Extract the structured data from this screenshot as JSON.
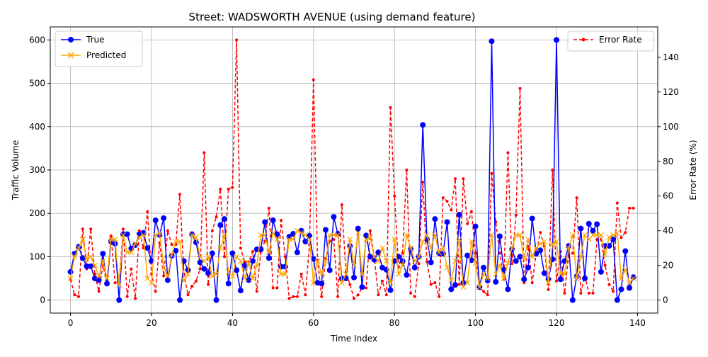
{
  "chart_data": {
    "type": "line",
    "title": "Street: WADSWORTH AVENUE (using demand feature)",
    "xlabel": "Time Index",
    "ylabel_left": "Traffic Volume",
    "ylabel_right": "Error Rate (%)",
    "xlim": [
      -5,
      145
    ],
    "ylim_left": [
      -30,
      630
    ],
    "ylim_right": [
      -7.5,
      157.5
    ],
    "x_ticks": [
      0,
      20,
      40,
      60,
      80,
      100,
      120,
      140
    ],
    "y_ticks_left": [
      0,
      100,
      200,
      300,
      400,
      500,
      600
    ],
    "y_ticks_right": [
      0,
      20,
      40,
      60,
      80,
      100,
      120,
      140
    ],
    "grid": true,
    "legend_left_position": "upper-left",
    "legend_right_position": "upper-right",
    "series": [
      {
        "name": "True",
        "axis": "left",
        "color": "#0000ff",
        "marker": "circle",
        "values": [
          65,
          107,
          123,
          97,
          78,
          78,
          50,
          46,
          107,
          38,
          135,
          130,
          0,
          152,
          152,
          119,
          127,
          152,
          155,
          120,
          90,
          184,
          150,
          189,
          46,
          102,
          114,
          0,
          90,
          69,
          152,
          133,
          87,
          72,
          62,
          108,
          0,
          173,
          187,
          38,
          108,
          69,
          22,
          80,
          46,
          90,
          117,
          117,
          180,
          97,
          184,
          152,
          77,
          77,
          146,
          153,
          110,
          160,
          135,
          148,
          95,
          40,
          38,
          162,
          69,
          192,
          153,
          50,
          50,
          125,
          52,
          165,
          30,
          149,
          100,
          93,
          110,
          75,
          70,
          23,
          90,
          100,
          90,
          58,
          117,
          75,
          100,
          404,
          140,
          87,
          187,
          108,
          107,
          180,
          25,
          35,
          197,
          40,
          103,
          92,
          170,
          30,
          75,
          45,
          597,
          42,
          147,
          70,
          25,
          117,
          90,
          100,
          48,
          75,
          188,
          107,
          115,
          62,
          48,
          94,
          600,
          48,
          90,
          125,
          0,
          55,
          165,
          50,
          176,
          160,
          175,
          65,
          125,
          125,
          140,
          0,
          25,
          113,
          28,
          53
        ]
      },
      {
        "name": "Predicted",
        "axis": "left",
        "color": "#ffa500",
        "marker": "x",
        "values": [
          50,
          100,
          120,
          140,
          95,
          100,
          80,
          55,
          90,
          50,
          140,
          140,
          35,
          150,
          110,
          110,
          130,
          145,
          150,
          50,
          40,
          150,
          155,
          75,
          55,
          105,
          135,
          135,
          45,
          60,
          150,
          145,
          100,
          90,
          100,
          55,
          60,
          120,
          150,
          65,
          55,
          100,
          90,
          50,
          85,
          50,
          80,
          150,
          150,
          110,
          155,
          140,
          60,
          60,
          140,
          140,
          160,
          155,
          150,
          140,
          40,
          90,
          60,
          90,
          150,
          150,
          150,
          40,
          60,
          140,
          80,
          155,
          60,
          140,
          145,
          100,
          90,
          120,
          90,
          40,
          140,
          60,
          80,
          150,
          120,
          90,
          100,
          135,
          150,
          120,
          150,
          110,
          120,
          75,
          45,
          90,
          140,
          30,
          40,
          135,
          85,
          30,
          60,
          50,
          150,
          60,
          80,
          50,
          85,
          120,
          150,
          150,
          95,
          140,
          100,
          120,
          130,
          135,
          40,
          130,
          135,
          60,
          60,
          120,
          150,
          50,
          100,
          150,
          140,
          150,
          150,
          150,
          105,
          145,
          150,
          155,
          50,
          70,
          40,
          50
        ]
      },
      {
        "name": "Error Rate",
        "axis": "right",
        "color": "#ff0000",
        "marker": "dot",
        "dashed": true,
        "values": [
          12,
          3,
          2,
          41,
          18,
          41,
          15,
          5,
          20,
          10,
          37,
          10,
          10,
          41,
          2,
          18,
          1,
          40,
          30,
          51,
          15,
          5,
          33,
          14,
          40,
          32,
          32,
          61,
          15,
          3,
          8,
          11,
          18,
          85,
          9,
          40,
          48,
          64,
          25,
          64,
          65,
          150,
          30,
          22,
          22,
          28,
          5,
          28,
          34,
          53,
          7,
          7,
          46,
          25,
          1,
          2,
          2,
          15,
          3,
          32,
          127,
          23,
          2,
          24,
          34,
          35,
          2,
          55,
          16,
          9,
          1,
          3,
          7,
          7,
          40,
          25,
          3,
          11,
          3,
          111,
          60,
          19,
          27,
          75,
          4,
          2,
          21,
          68,
          22,
          9,
          10,
          2,
          59,
          57,
          52,
          70,
          9,
          70,
          44,
          51,
          27,
          7,
          5,
          3,
          73,
          45,
          27,
          12,
          85,
          21,
          49,
          122,
          10,
          31,
          10,
          27,
          39,
          31,
          6,
          75,
          11,
          28,
          4,
          26,
          27,
          59,
          4,
          14,
          4,
          4,
          35,
          35,
          20,
          9,
          5,
          56,
          36,
          39,
          53,
          53
        ]
      }
    ]
  }
}
